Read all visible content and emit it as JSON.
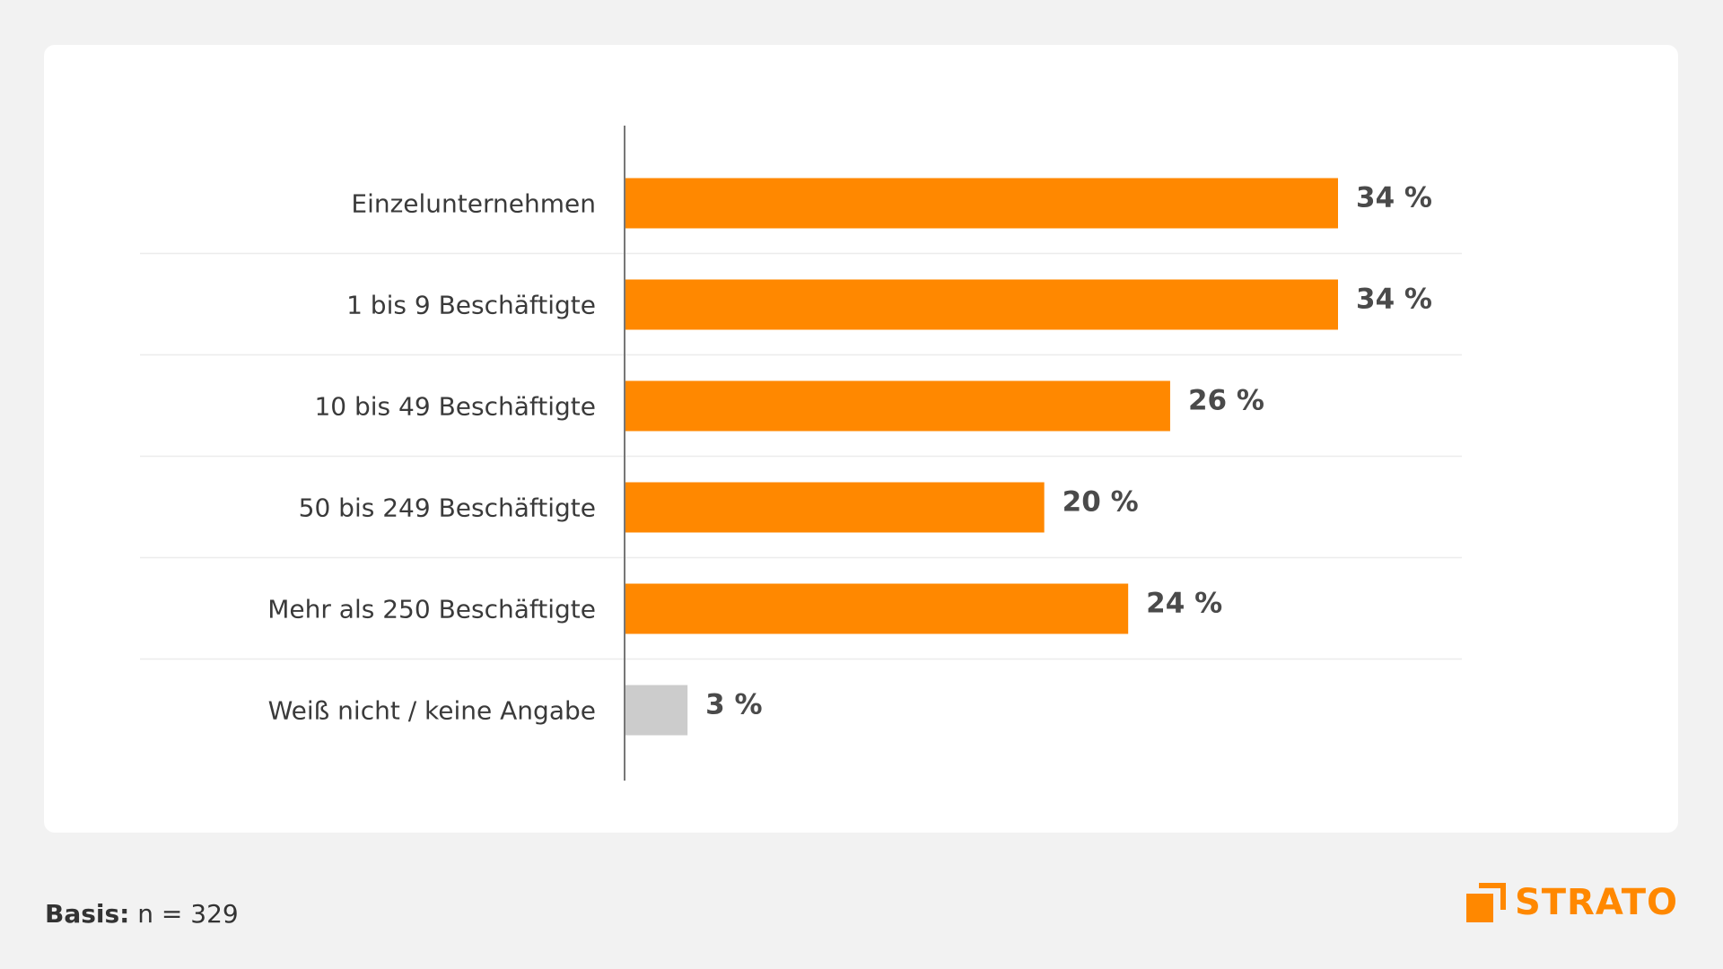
{
  "chart_data": {
    "type": "bar",
    "orientation": "horizontal",
    "categories": [
      "Einzelunternehmen",
      "1 bis 9 Beschäftigte",
      "10 bis 49 Beschäftigte",
      "50 bis 249 Beschäftigte",
      "Mehr als 250 Beschäftigte",
      "Weiß nicht / keine Angabe"
    ],
    "values": [
      34,
      34,
      26,
      20,
      24,
      3
    ],
    "value_labels": [
      "34 %",
      "34 %",
      "26 %",
      "20 %",
      "24 %",
      "3 %"
    ],
    "bar_colors": [
      "#ff8800",
      "#ff8800",
      "#ff8800",
      "#ff8800",
      "#ff8800",
      "#cccccc"
    ],
    "unit": "%",
    "xlim": [
      0,
      34
    ],
    "grid": false,
    "legend": "none"
  },
  "footer": {
    "basis_key": "Basis:",
    "basis_value": " n = 329"
  },
  "brand": {
    "name": "STRATO",
    "color": "#ff8800",
    "icon": "strato-logo-icon"
  }
}
